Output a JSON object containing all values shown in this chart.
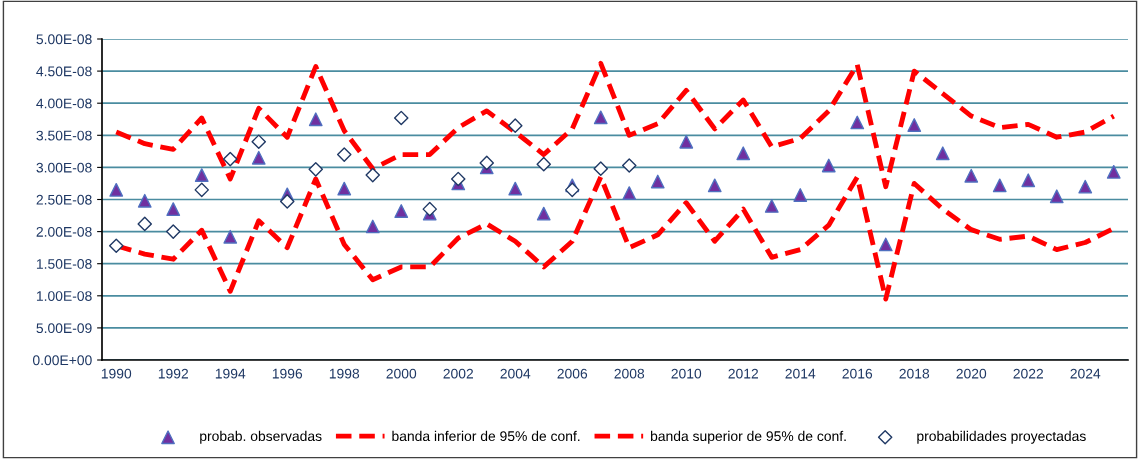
{
  "chart_data": {
    "type": "scatter",
    "categories": [
      "1990",
      null,
      "1992",
      null,
      "1994",
      null,
      "1996",
      null,
      "1998",
      null,
      "2000",
      null,
      "2002",
      null,
      "2004",
      null,
      "2006",
      null,
      "2008",
      null,
      "2010",
      null,
      "2012",
      null,
      "2014",
      null,
      "2016",
      null,
      "2018",
      null,
      "2020",
      null,
      "2022",
      null,
      "2024",
      null
    ],
    "series": [
      {
        "name": "probab. observadas",
        "marker": "triangle",
        "color": "#7030a0",
        "values": [
          2.65e-08,
          2.48e-08,
          2.35e-08,
          2.88e-08,
          1.92e-08,
          3.15e-08,
          2.58e-08,
          3.75e-08,
          2.67e-08,
          2.08e-08,
          2.32e-08,
          2.28e-08,
          2.75e-08,
          3e-08,
          2.67e-08,
          2.28e-08,
          2.72e-08,
          3.78e-08,
          2.6e-08,
          2.78e-08,
          3.4e-08,
          2.72e-08,
          3.22e-08,
          2.4e-08,
          2.57e-08,
          3.03e-08,
          3.7e-08,
          1.8e-08,
          3.66e-08,
          3.22e-08,
          2.87e-08,
          2.72e-08,
          2.8e-08,
          2.55e-08,
          2.7e-08,
          2.93e-08
        ]
      },
      {
        "name": "banda inferior de 95% de conf.",
        "type": "line",
        "line_style": "dashed",
        "marker": "none",
        "color": "#ff0000",
        "values": [
          1.78e-08,
          1.65e-08,
          1.57e-08,
          2.02e-08,
          1.07e-08,
          2.17e-08,
          1.75e-08,
          2.82e-08,
          1.8e-08,
          1.25e-08,
          1.45e-08,
          1.45e-08,
          1.9e-08,
          2.12e-08,
          1.85e-08,
          1.45e-08,
          1.85e-08,
          2.85e-08,
          1.75e-08,
          1.95e-08,
          2.45e-08,
          1.85e-08,
          2.35e-08,
          1.6e-08,
          1.72e-08,
          2.1e-08,
          2.85e-08,
          9.5e-09,
          2.75e-08,
          2.35e-08,
          2.03e-08,
          1.88e-08,
          1.93e-08,
          1.72e-08,
          1.83e-08,
          2.05e-08
        ]
      },
      {
        "name": "banda superior de 95% de conf.",
        "type": "line",
        "line_style": "dashed",
        "marker": "none",
        "color": "#ff0000",
        "values": [
          3.55e-08,
          3.37e-08,
          3.28e-08,
          3.77e-08,
          2.82e-08,
          3.92e-08,
          3.47e-08,
          4.57e-08,
          3.57e-08,
          2.98e-08,
          3.2e-08,
          3.2e-08,
          3.62e-08,
          3.88e-08,
          3.55e-08,
          3.2e-08,
          3.6e-08,
          4.62e-08,
          3.5e-08,
          3.68e-08,
          4.2e-08,
          3.6e-08,
          4.05e-08,
          3.32e-08,
          3.45e-08,
          3.88e-08,
          4.6e-08,
          2.7e-08,
          4.5e-08,
          4.15e-08,
          3.8e-08,
          3.62e-08,
          3.67e-08,
          3.47e-08,
          3.55e-08,
          3.8e-08
        ]
      },
      {
        "name": "probabilidades proyectadas",
        "marker": "diamond",
        "color": "#1f3864",
        "values": [
          1.78e-08,
          2.12e-08,
          2e-08,
          2.65e-08,
          3.13e-08,
          3.4e-08,
          2.47e-08,
          2.97e-08,
          3.2e-08,
          2.88e-08,
          3.77e-08,
          2.35e-08,
          2.82e-08,
          3.07e-08,
          3.65e-08,
          3.05e-08,
          2.65e-08,
          2.98e-08,
          3.03e-08,
          null,
          null,
          null,
          null,
          null,
          null,
          null,
          null,
          null,
          null,
          null,
          null,
          null,
          null,
          null,
          null,
          null
        ]
      }
    ],
    "ylim": [
      0,
      5e-08
    ],
    "yticks": [
      {
        "value": 0,
        "label": "0.00E+00"
      },
      {
        "value": 5e-09,
        "label": "5.00E-09"
      },
      {
        "value": 1e-08,
        "label": "1.00E-08"
      },
      {
        "value": 1.5e-08,
        "label": "1.50E-08"
      },
      {
        "value": 2e-08,
        "label": "2.00E-08"
      },
      {
        "value": 2.5e-08,
        "label": "2.50E-08"
      },
      {
        "value": 3e-08,
        "label": "3.00E-08"
      },
      {
        "value": 3.5e-08,
        "label": "3.50E-08"
      },
      {
        "value": 4e-08,
        "label": "4.00E-08"
      },
      {
        "value": 4.5e-08,
        "label": "4.50E-08"
      },
      {
        "value": 5e-08,
        "label": "5.00E-08"
      }
    ],
    "grid": "y",
    "legend": "bottom"
  }
}
